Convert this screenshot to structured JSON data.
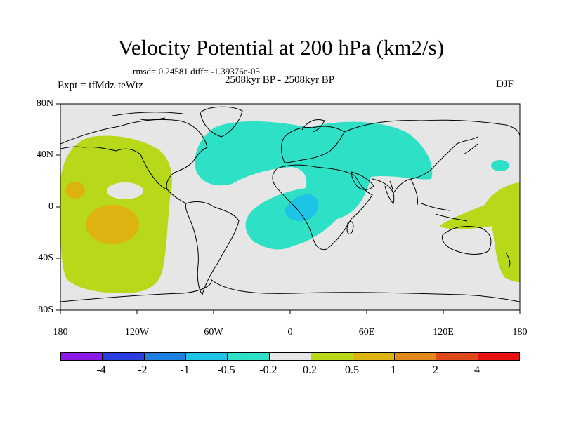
{
  "title": "Velocity Potential at 200 hPa (km2/s)",
  "stats": "rmsd= 0.24581 diff= -1.39376e-05",
  "period": "2508kyr BP - 2508kyr BP",
  "experiment": "Expt = tfMdz-teWtz",
  "season": "DJF",
  "lat_labels": [
    "80N",
    "40N",
    "0",
    "40S",
    "80S"
  ],
  "lon_labels": [
    "180",
    "120W",
    "60W",
    "0",
    "60E",
    "120E",
    "180"
  ],
  "colorbar": {
    "colors": [
      "#8b1ae6",
      "#2a3ee0",
      "#1d7fe0",
      "#1ec4e6",
      "#2ee0c6",
      "#e6e6e6",
      "#b8d81a",
      "#ddb312",
      "#e0891a",
      "#e04a1a",
      "#e61212"
    ],
    "labels": [
      "-4",
      "-2",
      "-1",
      "-0.5",
      "-0.2",
      "0.2",
      "0.5",
      "1",
      "2",
      "4"
    ]
  },
  "map_colors": {
    "background": "#e6e6e6",
    "negative_weak": "#2ee0c6",
    "negative_mid": "#1ec4e6",
    "positive_weak": "#b8d81a",
    "positive_mid": "#ddb312"
  }
}
